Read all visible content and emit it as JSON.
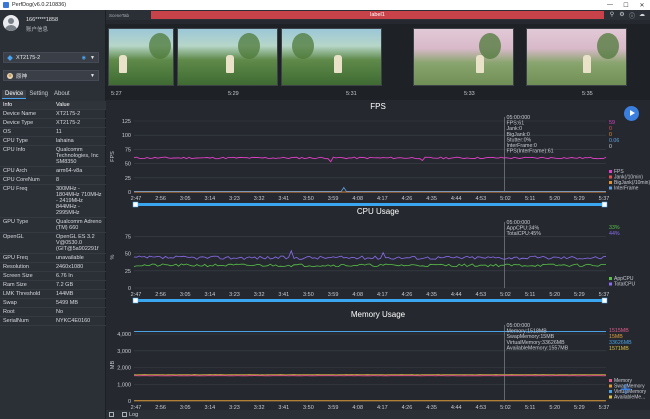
{
  "window": {
    "title": "PerfDog(v6.0.210836)",
    "controls": [
      "—",
      "☐",
      "✕"
    ]
  },
  "user": {
    "account": "166*****1858",
    "subtitle": "账户信息"
  },
  "device_select": {
    "value": "XT2175-2"
  },
  "app_select": {
    "value": "原神"
  },
  "tabs": [
    "Device",
    "Setting",
    "About"
  ],
  "props_header": {
    "key": "Info",
    "value": "Value"
  },
  "props": [
    {
      "k": "Device Name",
      "v": "XT2175-2"
    },
    {
      "k": "Device Type",
      "v": "XT2175-2"
    },
    {
      "k": "OS",
      "v": "11"
    },
    {
      "k": "CPU Type",
      "v": "lahaina"
    },
    {
      "k": "CPU Info",
      "v": "Qualcomm Technologies, Inc SM8350"
    },
    {
      "k": "CPU Arch",
      "v": "arm64-v8a"
    },
    {
      "k": "CPU CoreNum",
      "v": "8"
    },
    {
      "k": "CPU Freq",
      "v": "300MHz - 1804MHz 710MHz - 2419MHz 844MHz - 2995MHz"
    },
    {
      "k": "GPU Type",
      "v": "Qualcomm Adreno (TM) 660"
    },
    {
      "k": "OpenGL",
      "v": "OpenGL ES 3.2 V@0530.0 (GIT@5a902291f"
    },
    {
      "k": "GPU Freq",
      "v": "unavailable"
    },
    {
      "k": "Resolution",
      "v": "2460x1080"
    },
    {
      "k": "Screen Size",
      "v": "6.76 In"
    },
    {
      "k": "Ram Size",
      "v": "7.2 GB"
    },
    {
      "k": "LMK Threshold",
      "v": "144MB"
    },
    {
      "k": "Swap",
      "v": "5499 MB"
    },
    {
      "k": "Root",
      "v": "No"
    },
    {
      "k": "SerialNum",
      "v": "NYKC4E0160"
    }
  ],
  "scenebar": {
    "tab": "SceneTab",
    "label": "label1"
  },
  "thumb_times": [
    "5:27",
    "5:29",
    "5:31",
    "5:33",
    "5:35"
  ],
  "x_ticks": [
    "2:47",
    "2:56",
    "3:05",
    "3:14",
    "3:23",
    "3:32",
    "3:41",
    "3:50",
    "3:59",
    "4:08",
    "4:17",
    "4:26",
    "4:35",
    "4:44",
    "4:53",
    "5:02",
    "5:11",
    "5:20",
    "5:29",
    "5:37"
  ],
  "fps": {
    "title": "FPS",
    "y_ticks": [
      "125",
      "100",
      "75",
      "50",
      "25",
      "0"
    ],
    "ylabel": "FPS",
    "tooltip": [
      "05:00:000",
      "FPS:61",
      "Jank:0",
      "BigJank:0",
      "Stutter:0%",
      "InterFrame:0",
      "FPS(InterFrame):61"
    ],
    "right_values": [
      "59",
      "0",
      "0",
      "0.06",
      "0"
    ],
    "legend": [
      "FPS",
      "Jank(/10min)",
      "BigJank(/10min)",
      "InterFrame"
    ],
    "colors": [
      "#e040c8",
      "#e05050",
      "#e09030",
      "#60a0e0"
    ]
  },
  "cpu": {
    "title": "CPU Usage",
    "y_ticks": [
      "75",
      "50",
      "25",
      "0"
    ],
    "ylabel": "%",
    "tooltip": [
      "05:00:000",
      "AppCPU:34%",
      "TotalCPU:45%"
    ],
    "right_values": [
      "33%",
      "44%"
    ],
    "legend": [
      "AppCPU",
      "TotalCPU"
    ],
    "colors": [
      "#58c048",
      "#8c6cf0"
    ]
  },
  "memory": {
    "title": "Memory Usage",
    "y_ticks": [
      "4,000",
      "3,000",
      "2,000",
      "1,000",
      "0"
    ],
    "ylabel": "MB",
    "tooltip": [
      "05:00:000",
      "Memory:1518MB",
      "SwapMemory:15MB",
      "VirtualMemory:33626MB",
      "AvailableMemory:1557MB"
    ],
    "right_values": [
      "1515MB",
      "15MB",
      "33626MB",
      "1571MB"
    ],
    "legend": [
      "Memory",
      "SwapMemory",
      "VirtualMemory",
      "AvailableMe..."
    ],
    "colors": [
      "#e05a8a",
      "#e09a38",
      "#4aa0e0",
      "#e0c040"
    ]
  },
  "bottom": {
    "log_label": "Log"
  },
  "chart_data": [
    {
      "type": "line",
      "title": "FPS",
      "ylabel": "FPS",
      "ylim": [
        0,
        125
      ],
      "series": [
        {
          "name": "FPS",
          "approx_value": 60
        },
        {
          "name": "Jank(/10min)",
          "approx_value": 0
        },
        {
          "name": "BigJank(/10min)",
          "approx_value": 0
        },
        {
          "name": "InterFrame",
          "approx_value": 0
        }
      ]
    },
    {
      "type": "line",
      "title": "CPU Usage",
      "ylabel": "%",
      "ylim": [
        0,
        90
      ],
      "series": [
        {
          "name": "AppCPU",
          "approx_value": 33
        },
        {
          "name": "TotalCPU",
          "approx_value": 44
        }
      ]
    },
    {
      "type": "line",
      "title": "Memory Usage",
      "ylabel": "MB",
      "ylim": [
        0,
        4300
      ],
      "series": [
        {
          "name": "Memory",
          "approx_value": 1515
        },
        {
          "name": "SwapMemory",
          "approx_value": 15
        },
        {
          "name": "VirtualMemory",
          "approx_value": 33626
        },
        {
          "name": "AvailableMe...",
          "approx_value": 1571
        }
      ]
    }
  ]
}
